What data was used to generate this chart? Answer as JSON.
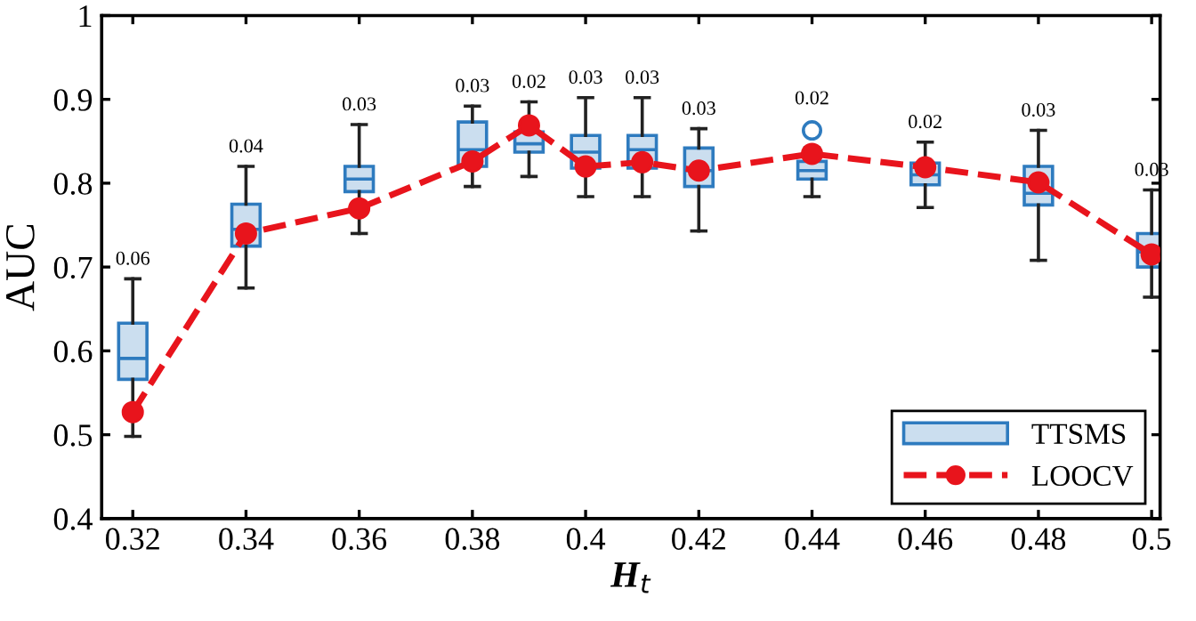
{
  "chart_data": {
    "type": "box",
    "xlabel": "H$_{t}$",
    "ylabel": "AUC",
    "x": [
      0.32,
      0.34,
      0.36,
      0.38,
      0.39,
      0.4,
      0.41,
      0.42,
      0.44,
      0.46,
      0.48,
      0.5
    ],
    "series": [
      {
        "name": "TTSMS",
        "color": "#2e7bbf",
        "boxes": [
          {
            "low": 0.498,
            "q1": 0.566,
            "median": 0.591,
            "q3": 0.633,
            "high": 0.686
          },
          {
            "low": 0.675,
            "q1": 0.725,
            "median": 0.745,
            "q3": 0.775,
            "high": 0.82
          },
          {
            "low": 0.74,
            "q1": 0.79,
            "median": 0.805,
            "q3": 0.82,
            "high": 0.87
          },
          {
            "low": 0.796,
            "q1": 0.82,
            "median": 0.84,
            "q3": 0.873,
            "high": 0.892
          },
          {
            "low": 0.808,
            "q1": 0.837,
            "median": 0.847,
            "q3": 0.861,
            "high": 0.897
          },
          {
            "low": 0.784,
            "q1": 0.818,
            "median": 0.837,
            "q3": 0.857,
            "high": 0.902
          },
          {
            "low": 0.784,
            "q1": 0.818,
            "median": 0.84,
            "q3": 0.857,
            "high": 0.902
          },
          {
            "low": 0.743,
            "q1": 0.796,
            "median": 0.815,
            "q3": 0.842,
            "high": 0.865
          },
          {
            "low": 0.784,
            "q1": 0.805,
            "median": 0.815,
            "q3": 0.826,
            "high": 0.842,
            "outliers": [
              0.863
            ]
          },
          {
            "low": 0.771,
            "q1": 0.798,
            "median": 0.81,
            "q3": 0.824,
            "high": 0.849
          },
          {
            "low": 0.708,
            "q1": 0.774,
            "median": 0.788,
            "q3": 0.82,
            "high": 0.863
          },
          {
            "low": 0.664,
            "q1": 0.7,
            "median": 0.718,
            "q3": 0.74,
            "high": 0.792
          }
        ]
      },
      {
        "type": "line",
        "name": "LOOCV",
        "color": "#e8141c",
        "marker": "circle",
        "line_style": "dashed",
        "values": [
          0.527,
          0.74,
          0.77,
          0.826,
          0.869,
          0.82,
          0.825,
          0.815,
          0.835,
          0.819,
          0.801,
          0.715
        ]
      }
    ],
    "annotations": [
      {
        "text": "0.06",
        "x": 0.32,
        "y": 0.686
      },
      {
        "text": "0.04",
        "x": 0.34,
        "y": 0.82
      },
      {
        "text": "0.03",
        "x": 0.36,
        "y": 0.87
      },
      {
        "text": "0.03",
        "x": 0.38,
        "y": 0.892
      },
      {
        "text": "0.02",
        "x": 0.39,
        "y": 0.897
      },
      {
        "text": "0.03",
        "x": 0.4,
        "y": 0.902
      },
      {
        "text": "0.03",
        "x": 0.41,
        "y": 0.902
      },
      {
        "text": "0.03",
        "x": 0.42,
        "y": 0.865
      },
      {
        "text": "0.02",
        "x": 0.44,
        "y": 0.842
      },
      {
        "text": "0.02",
        "x": 0.46,
        "y": 0.849
      },
      {
        "text": "0.03",
        "x": 0.48,
        "y": 0.863
      },
      {
        "text": "0.03",
        "x": 0.5,
        "y": 0.792
      }
    ],
    "xlim": [
      0.3145,
      0.5015
    ],
    "xticks": [
      0.32,
      0.34,
      0.36,
      0.38,
      0.4,
      0.42,
      0.44,
      0.46,
      0.48,
      0.5
    ],
    "ylim": [
      0.4,
      1
    ],
    "yticks": [
      0.4,
      0.5,
      0.6,
      0.7,
      0.8,
      0.9,
      1
    ],
    "grid": false,
    "legend": "bottom right"
  }
}
